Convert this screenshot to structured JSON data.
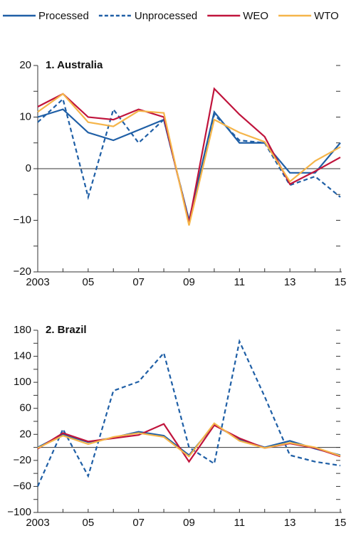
{
  "chart_data": [
    {
      "type": "line",
      "title": "1. Australia",
      "x": [
        2003,
        2004,
        2005,
        2006,
        2007,
        2008,
        2009,
        2010,
        2011,
        2012,
        2013,
        2014,
        2015
      ],
      "xlim": [
        2003,
        2015
      ],
      "xticks": [
        2003,
        {
          "value": 2005,
          "label": "05"
        },
        {
          "value": 2007,
          "label": "07"
        },
        {
          "value": 2009,
          "label": "09"
        },
        {
          "value": 2011,
          "label": "11"
        },
        {
          "value": 2013,
          "label": "13"
        },
        {
          "value": 2015,
          "label": "15"
        }
      ],
      "ylim": [
        -20,
        20
      ],
      "yticks": [
        {
          "value": -20,
          "label": "−20"
        },
        {
          "value": -10,
          "label": "−10"
        },
        0,
        10,
        20
      ],
      "yminorticks": [
        -15,
        -5,
        5,
        15
      ],
      "series": [
        {
          "name": "Processed",
          "color": "#1f5fa6",
          "style": "solid",
          "values": [
            10,
            11.5,
            7,
            5.5,
            7.5,
            9.5,
            -10,
            11,
            5,
            5,
            -0.8,
            -0.8,
            5
          ]
        },
        {
          "name": "Unprocessed",
          "color": "#1f5fa6",
          "style": "dashed",
          "values": [
            9,
            13.5,
            -5.5,
            11.5,
            5,
            9.5,
            -10,
            10.5,
            5.5,
            5,
            -3.2,
            -1.5,
            -5.5
          ]
        },
        {
          "name": "WEO",
          "color": "#c0143c",
          "style": "solid",
          "values": [
            12,
            14.5,
            10,
            9.5,
            11.5,
            10,
            -10.5,
            15.5,
            10.5,
            6.2,
            -3,
            -0.5,
            2.2
          ]
        },
        {
          "name": "WTO",
          "color": "#f5b54a",
          "style": "solid",
          "values": [
            11,
            14.5,
            9,
            8.2,
            11.2,
            10.8,
            -11,
            9.5,
            7,
            5.2,
            -2.5,
            1.5,
            4.2
          ]
        }
      ]
    },
    {
      "type": "line",
      "title": "2. Brazil",
      "x": [
        2003,
        2004,
        2005,
        2006,
        2007,
        2008,
        2009,
        2010,
        2011,
        2012,
        2013,
        2014,
        2015
      ],
      "xlim": [
        2003,
        2015
      ],
      "xticks": [
        2003,
        {
          "value": 2005,
          "label": "05"
        },
        {
          "value": 2007,
          "label": "07"
        },
        {
          "value": 2009,
          "label": "09"
        },
        {
          "value": 2011,
          "label": "11"
        },
        {
          "value": 2013,
          "label": "13"
        },
        {
          "value": 2015,
          "label": "15"
        }
      ],
      "ylim": [
        -100,
        180
      ],
      "yticks": [
        {
          "value": -100,
          "label": "−100"
        },
        {
          "value": -60,
          "label": "−60"
        },
        {
          "value": -20,
          "label": "−20"
        },
        20,
        60,
        100,
        140,
        180
      ],
      "yminorticks": [
        -80,
        -40,
        0,
        40,
        80,
        120,
        160
      ],
      "series": [
        {
          "name": "Processed",
          "color": "#1f5fa6",
          "style": "solid",
          "values": [
            0,
            20,
            8,
            15,
            24,
            18,
            -12,
            35,
            12,
            0,
            10,
            -2,
            -12
          ]
        },
        {
          "name": "Unprocessed",
          "color": "#1f5fa6",
          "style": "dashed",
          "values": [
            -60,
            28,
            -44,
            87,
            101,
            145,
            0,
            -25,
            163,
            78,
            -12,
            -22,
            -28
          ]
        },
        {
          "name": "WEO",
          "color": "#c0143c",
          "style": "solid",
          "values": [
            -2,
            22,
            9,
            14,
            19,
            36,
            -22,
            34,
            14,
            -1,
            6,
            -1,
            -14
          ]
        },
        {
          "name": "WTO",
          "color": "#f5b54a",
          "style": "solid",
          "values": [
            -1,
            18,
            5,
            16,
            22,
            16,
            -14,
            37,
            10,
            -1,
            7,
            0,
            -13
          ]
        }
      ]
    }
  ]
}
